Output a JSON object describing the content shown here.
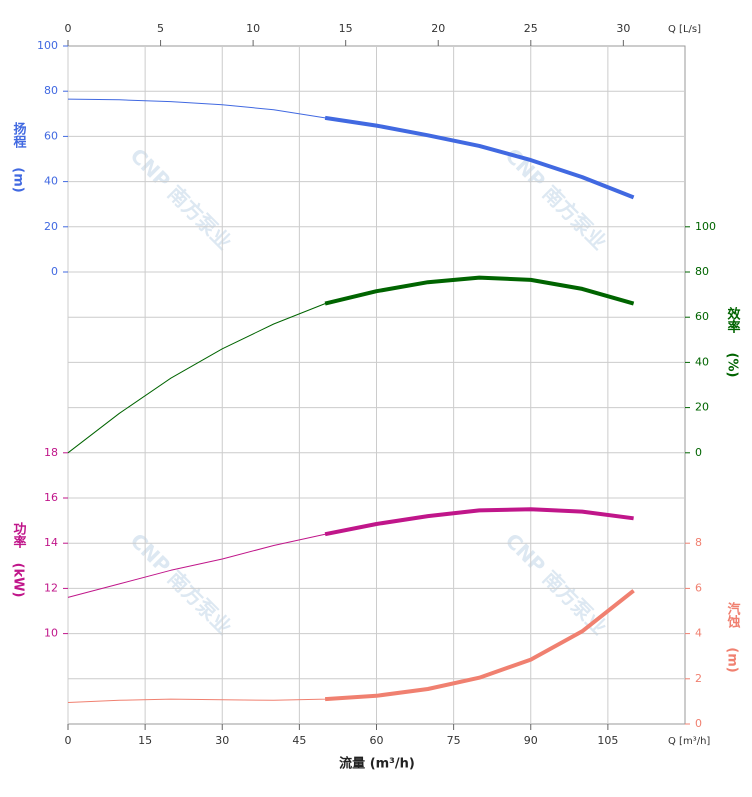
{
  "chart_data": {
    "type": "line",
    "xlabel": "流量 (m³/h)",
    "x_unit_label": "Q [m³/h]",
    "xlim": [
      0,
      120
    ],
    "xticks": [
      0,
      15,
      30,
      45,
      60,
      75,
      90,
      105
    ],
    "x2_unit_label": "Q [L/s]",
    "x2lim": [
      0,
      33.33
    ],
    "x2ticks": [
      0,
      5,
      10,
      15,
      20,
      25,
      30
    ],
    "operating_range": [
      50,
      110
    ],
    "watermark": "CNP 南方泵业",
    "grid": true,
    "x": [
      0,
      10,
      20,
      30,
      40,
      50,
      60,
      70,
      80,
      90,
      100,
      110
    ],
    "series": [
      {
        "name": "扬程",
        "unit": "(m)",
        "color": "#4169e1",
        "axis": "y",
        "values": [
          76.5,
          76.2,
          75.4,
          74,
          71.8,
          68.2,
          64.8,
          60.5,
          55.8,
          49.5,
          42,
          33
        ]
      },
      {
        "name": "效率",
        "unit": "(%)",
        "color": "#006400",
        "axis": "y2",
        "values": [
          0,
          17.5,
          33,
          46,
          57,
          66,
          71.5,
          75.5,
          77.5,
          76.5,
          72.5,
          66
        ]
      },
      {
        "name": "功率",
        "unit": "(kW)",
        "color": "#c0168a",
        "axis": "y3",
        "values": [
          11.6,
          12.2,
          12.8,
          13.3,
          13.9,
          14.4,
          14.85,
          15.2,
          15.45,
          15.5,
          15.4,
          15.1
        ]
      },
      {
        "name": "汽蚀",
        "unit": "(m)",
        "color": "#f08070",
        "axis": "y4",
        "values": [
          0.95,
          1.05,
          1.1,
          1.07,
          1.05,
          1.1,
          1.25,
          1.55,
          2.05,
          2.85,
          4.1,
          5.9
        ]
      }
    ],
    "ylim": [
      -200,
      100
    ],
    "yticks": [
      0,
      20,
      40,
      60,
      80,
      100
    ],
    "y2lim": [
      -120,
      180
    ],
    "y2ticks": [
      0,
      20,
      40,
      60,
      80,
      100
    ],
    "y3lim": [
      6,
      36
    ],
    "y3ticks": [
      10,
      12,
      14,
      16,
      18
    ],
    "y4lim": [
      0,
      30
    ],
    "y4ticks": [
      0,
      2,
      4,
      6,
      8
    ]
  }
}
